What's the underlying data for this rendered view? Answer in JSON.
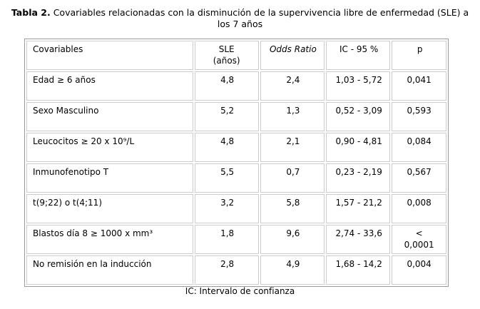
{
  "caption": {
    "label": "Tabla 2.",
    "text": "Covariables relacionadas con la disminución de la supervivencia libre de enfermedad (SLE) a los 7 años"
  },
  "table": {
    "header": [
      "Covariables",
      "SLE (años)",
      "Odds Ratio",
      "IC - 95 %",
      "p"
    ],
    "rows": [
      [
        "Edad ≥ 6 años",
        "4,8",
        "2,4",
        "1,03 - 5,72",
        "0,041"
      ],
      [
        "Sexo Masculino",
        "5,2",
        "1,3",
        "0,52 - 3,09",
        "0,593"
      ],
      [
        "Leucocitos ≥ 20 x 10⁹/L",
        "4,8",
        "2,1",
        "0,90 - 4,81",
        "0,084"
      ],
      [
        "Inmunofenotipo  T",
        "5,5",
        "0,7",
        "0,23 - 2,19",
        "0,567"
      ],
      [
        "t(9;22) o t(4;11)",
        "3,2",
        "5,8",
        "1,57 - 21,2",
        "0,008"
      ],
      [
        "Blastos día 8  ≥ 1000 x mm³",
        "1,8",
        "9,6",
        "2,74 - 33,6",
        "< 0,0001"
      ],
      [
        "No remisión en la inducción",
        "2,8",
        "4,9",
        "1,68 - 14,2",
        "0,004"
      ]
    ]
  },
  "footnote": "IC: Intervalo de confianza"
}
